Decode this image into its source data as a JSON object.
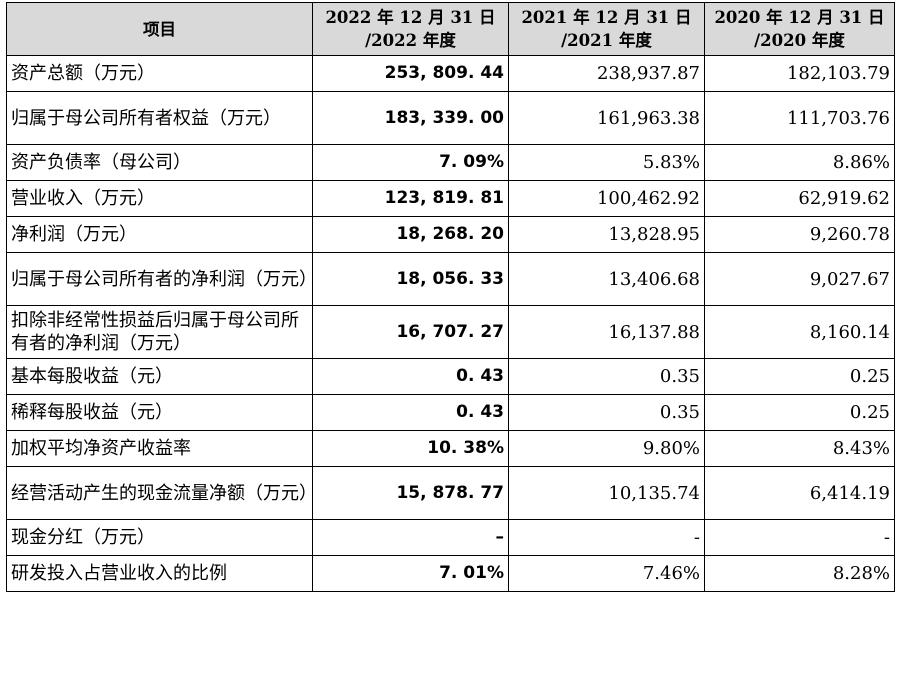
{
  "header": {
    "item": "项目",
    "col2022_line1": "2022 年 12 月 31 日",
    "col2022_line2": "/2022 年度",
    "col2021_line1": "2021 年 12 月 31 日",
    "col2021_line2": "/2021 年度",
    "col2020_line1": "2020 年 12 月 31 日",
    "col2020_line2": "/2020 年度"
  },
  "rows": [
    {
      "label": "资产总额（万元）",
      "v2022": "253, 809. 44",
      "v2021": "238,937.87",
      "v2020": "182,103.79"
    },
    {
      "label": "归属于母公司所有者权益（万元）",
      "v2022": "183, 339. 00",
      "v2021": "161,963.38",
      "v2020": "111,703.76"
    },
    {
      "label": "资产负债率（母公司）",
      "v2022": "7. 09%",
      "v2021": "5.83%",
      "v2020": "8.86%"
    },
    {
      "label": "营业收入（万元）",
      "v2022": "123, 819. 81",
      "v2021": "100,462.92",
      "v2020": "62,919.62"
    },
    {
      "label": "净利润（万元）",
      "v2022": "18, 268. 20",
      "v2021": "13,828.95",
      "v2020": "9,260.78"
    },
    {
      "label": "归属于母公司所有者的净利润（万元）",
      "v2022": "18, 056. 33",
      "v2021": "13,406.68",
      "v2020": "9,027.67"
    },
    {
      "label": "扣除非经常性损益后归属于母公司所有者的净利润（万元）",
      "v2022": "16, 707. 27",
      "v2021": "16,137.88",
      "v2020": "8,160.14"
    },
    {
      "label": "基本每股收益（元）",
      "v2022": "0. 43",
      "v2021": "0.35",
      "v2020": "0.25"
    },
    {
      "label": "稀释每股收益（元）",
      "v2022": "0. 43",
      "v2021": "0.35",
      "v2020": "0.25"
    },
    {
      "label": "加权平均净资产收益率",
      "v2022": "10. 38%",
      "v2021": "9.80%",
      "v2020": "8.43%"
    },
    {
      "label": "经营活动产生的现金流量净额（万元）",
      "v2022": "15, 878. 77",
      "v2021": "10,135.74",
      "v2020": "6,414.19"
    },
    {
      "label": "现金分红（万元）",
      "v2022": "–",
      "v2021": "-",
      "v2020": "-"
    },
    {
      "label": "研发投入占营业收入的比例",
      "v2022": "7. 01%",
      "v2021": "7.46%",
      "v2020": "8.28%"
    }
  ]
}
